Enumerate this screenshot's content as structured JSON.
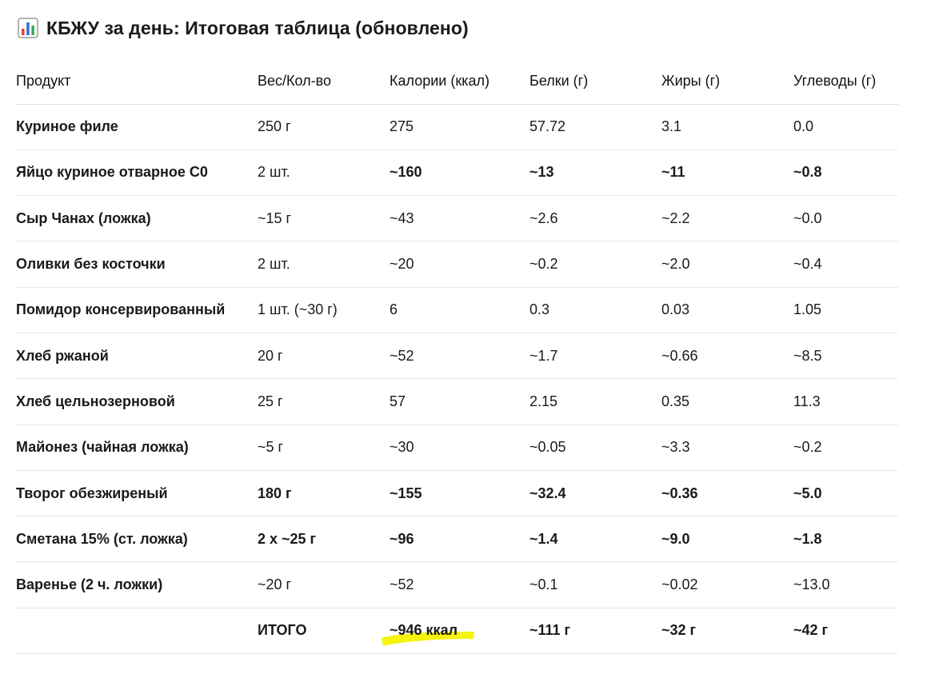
{
  "title": {
    "icon": "bar-chart-icon",
    "text": "КБЖУ за день: Итоговая таблица (обновлено)"
  },
  "table": {
    "headers": [
      "Продукт",
      "Вес/Кол-во",
      "Калории (ккал)",
      "Белки (г)",
      "Жиры (г)",
      "Углеводы (г)"
    ],
    "rows": [
      {
        "cells": [
          "Куриное филе",
          "250 г",
          "275",
          "57.72",
          "3.1",
          "0.0"
        ],
        "bold": [
          false,
          false,
          false,
          false,
          false,
          false
        ]
      },
      {
        "cells": [
          "Яйцо куриное отварное С0",
          "2 шт.",
          "~160",
          "~13",
          "~11",
          "~0.8"
        ],
        "bold": [
          false,
          false,
          true,
          true,
          true,
          true
        ]
      },
      {
        "cells": [
          "Сыр Чанах (ложка)",
          "~15 г",
          "~43",
          "~2.6",
          "~2.2",
          "~0.0"
        ],
        "bold": [
          false,
          false,
          false,
          false,
          false,
          false
        ]
      },
      {
        "cells": [
          "Оливки без косточки",
          "2 шт.",
          "~20",
          "~0.2",
          "~2.0",
          "~0.4"
        ],
        "bold": [
          false,
          false,
          false,
          false,
          false,
          false
        ]
      },
      {
        "cells": [
          "Помидор консервированный",
          "1 шт. (~30 г)",
          "6",
          "0.3",
          "0.03",
          "1.05"
        ],
        "bold": [
          false,
          false,
          false,
          false,
          false,
          false
        ]
      },
      {
        "cells": [
          "Хлеб ржаной",
          "20 г",
          "~52",
          "~1.7",
          "~0.66",
          "~8.5"
        ],
        "bold": [
          false,
          false,
          false,
          false,
          false,
          false
        ]
      },
      {
        "cells": [
          "Хлеб цельнозерновой",
          "25 г",
          "57",
          "2.15",
          "0.35",
          "11.3"
        ],
        "bold": [
          false,
          false,
          false,
          false,
          false,
          false
        ]
      },
      {
        "cells": [
          "Майонез (чайная ложка)",
          "~5 г",
          "~30",
          "~0.05",
          "~3.3",
          "~0.2"
        ],
        "bold": [
          false,
          false,
          false,
          false,
          false,
          false
        ]
      },
      {
        "cells": [
          "Творог обезжиреный",
          "180 г",
          "~155",
          "~32.4",
          "~0.36",
          "~5.0"
        ],
        "bold": [
          false,
          true,
          true,
          true,
          true,
          true
        ]
      },
      {
        "cells": [
          "Сметана 15% (ст. ложка)",
          "2 x ~25 г",
          "~96",
          "~1.4",
          "~9.0",
          "~1.8"
        ],
        "bold": [
          false,
          true,
          true,
          true,
          true,
          true
        ]
      },
      {
        "cells": [
          "Варенье (2 ч. ложки)",
          "~20 г",
          "~52",
          "~0.1",
          "~0.02",
          "~13.0"
        ],
        "bold": [
          false,
          false,
          false,
          false,
          false,
          false
        ]
      }
    ],
    "total": {
      "label": "ИТОГО",
      "calories": "~946 ккал",
      "protein": "~111 г",
      "fat": "~32 г",
      "carbs": "~42 г"
    }
  },
  "colors": {
    "highlight": "#f5f200",
    "divider": "#e6e6e6",
    "text": "#1a1a1a"
  }
}
